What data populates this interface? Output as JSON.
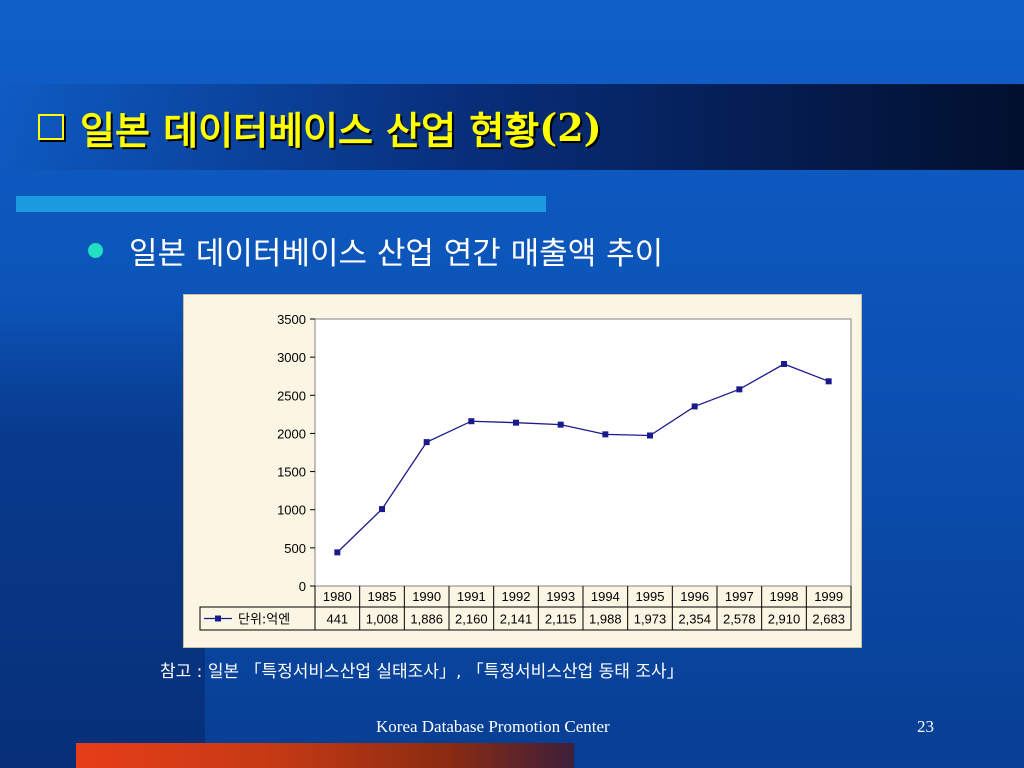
{
  "slide": {
    "title_main": "일본 데이터베이스 산업 현황",
    "title_suffix": "(2)",
    "bullet": "일본 데이터베이스 산업 연간 매출액 추이",
    "note": "참고 : 일본 「특정서비스산업 실태조사」, 「특정서비스산업 동태 조사」",
    "footer": "Korea Database Promotion Center",
    "page_number": "23",
    "colors": {
      "title": "#ffff00",
      "accent_bar": "#1a9be0",
      "bullet_dot": "#1fe0c0",
      "chart_background": "#fbf6e4",
      "series_line": "#1a1a8c",
      "footer_bar": "#e83d1a"
    }
  },
  "chart_data": {
    "type": "line",
    "categories": [
      "1980",
      "1985",
      "1990",
      "1991",
      "1992",
      "1993",
      "1994",
      "1995",
      "1996",
      "1997",
      "1998",
      "1999"
    ],
    "series": [
      {
        "name": "단위:억엔",
        "values": [
          441,
          1008,
          1886,
          2160,
          2141,
          2115,
          1988,
          1973,
          2354,
          2578,
          2910,
          2683
        ],
        "labels": [
          "441",
          "1,008",
          "1,886",
          "2,160",
          "2,141",
          "2,115",
          "1,988",
          "1,973",
          "2,354",
          "2,578",
          "2,910",
          "2,683"
        ]
      }
    ],
    "y_ticks": [
      0,
      500,
      1000,
      1500,
      2000,
      2500,
      3000,
      3500
    ],
    "ylim": [
      0,
      3500
    ],
    "grid": false,
    "legend": "data-table-left",
    "marker": "square"
  }
}
